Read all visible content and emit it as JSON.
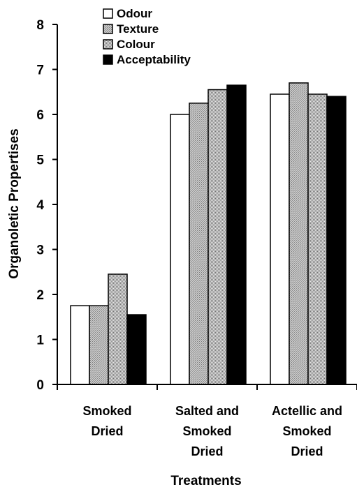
{
  "chart_data": {
    "type": "bar",
    "title": "",
    "xlabel": "Treatments",
    "ylabel": "Organoletic Propertises",
    "ylim": [
      0,
      8
    ],
    "yticks": [
      0,
      1,
      2,
      3,
      4,
      5,
      6,
      7,
      8
    ],
    "grid": false,
    "legend_position": "top-left",
    "categories": [
      [
        "Smoked",
        "Dried"
      ],
      [
        "Salted and",
        "Smoked",
        "Dried"
      ],
      [
        "Actellic and",
        "Smoked",
        "Dried"
      ]
    ],
    "series": [
      {
        "name": "Odour",
        "fill": "white",
        "values": [
          1.75,
          6.0,
          6.45
        ]
      },
      {
        "name": "Texture",
        "fill": "hatch",
        "values": [
          1.75,
          6.25,
          6.7
        ]
      },
      {
        "name": "Colour",
        "fill": "dots",
        "values": [
          2.45,
          6.55,
          6.45
        ]
      },
      {
        "name": "Acceptability",
        "fill": "black",
        "values": [
          1.55,
          6.65,
          6.4
        ]
      }
    ]
  }
}
